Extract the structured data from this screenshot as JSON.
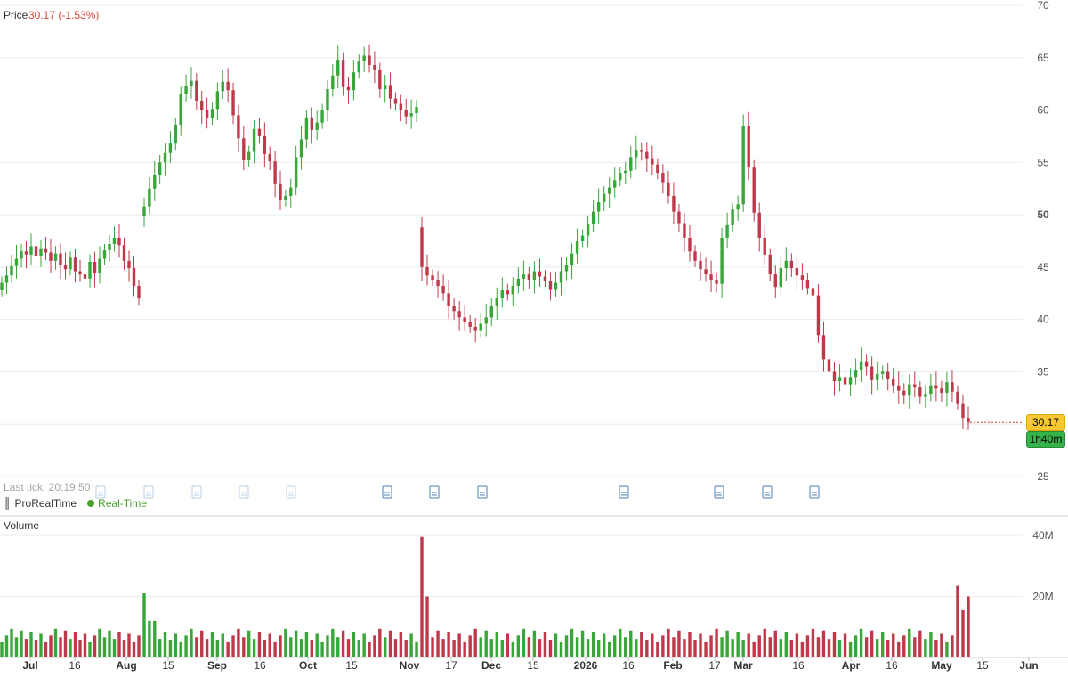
{
  "header": {
    "price_label": "Price",
    "price_change": "30.17 (-1.53%)"
  },
  "footer_info": {
    "last_tick": "Last tick: 20:19:50",
    "brand": "ProRealTime",
    "realtime": "Real-Time"
  },
  "volume_panel": {
    "title": "Volume"
  },
  "badges": {
    "last_price": "30.17",
    "countdown": "1h40m"
  },
  "colors": {
    "up": "#38a639",
    "down": "#c0394a",
    "current_price": "#f7c832",
    "timer": "#36b24a"
  },
  "icons": [
    "news-document-icon",
    "candlestick-logo-icon",
    "realtime-dot-icon"
  ],
  "chart_data": [
    {
      "type": "candlestick",
      "title": "Price",
      "price_axis": {
        "ticks": [
          25,
          30,
          35,
          40,
          45,
          50,
          55,
          60,
          65,
          70
        ],
        "labels": [
          "25",
          "35",
          "40",
          "45",
          "50",
          "55",
          "60",
          "65",
          "70"
        ],
        "range": [
          25,
          70
        ]
      },
      "time_axis": {
        "labels": [
          "Jul",
          "16",
          "Aug",
          "15",
          "Sep",
          "16",
          "Oct",
          "15",
          "Nov",
          "17",
          "Dec",
          "15",
          "2026",
          "16",
          "Feb",
          "17",
          "Mar",
          "16",
          "Apr",
          "16",
          "May",
          "15",
          "Jun"
        ]
      },
      "last_price": 30.17,
      "change_pct": -1.53,
      "grid": true,
      "closes": [
        43.5,
        44.2,
        45.1,
        45.8,
        46.5,
        46.2,
        47.0,
        46.1,
        46.8,
        46.4,
        45.6,
        46.3,
        45.2,
        44.8,
        45.9,
        44.6,
        44.3,
        43.9,
        45.5,
        44.4,
        45.8,
        46.6,
        47.2,
        47.8,
        47.1,
        45.6,
        44.9,
        43.2,
        42.0,
        50.8,
        52.5,
        53.8,
        55.0,
        55.9,
        56.8,
        58.6,
        61.5,
        62.3,
        62.8,
        60.9,
        60.0,
        59.2,
        60.1,
        61.8,
        62.7,
        61.9,
        59.5,
        57.3,
        55.2,
        56.0,
        58.2,
        57.5,
        55.8,
        55.1,
        53.0,
        51.4,
        51.8,
        52.6,
        55.5,
        57.2,
        59.3,
        58.1,
        58.8,
        60.0,
        62.0,
        63.3,
        64.8,
        62.2,
        61.9,
        63.6,
        64.7,
        65.2,
        64.3,
        63.8,
        62.0,
        62.4,
        61.1,
        60.6,
        60.0,
        59.4,
        59.7,
        60.3,
        45.0,
        44.2,
        43.8,
        43.2,
        42.5,
        41.3,
        40.8,
        40.2,
        39.8,
        39.3,
        38.9,
        39.6,
        40.2,
        41.3,
        42.1,
        42.8,
        42.4,
        43.2,
        43.9,
        44.3,
        43.8,
        44.6,
        44.1,
        43.7,
        42.9,
        43.5,
        44.6,
        45.2,
        46.3,
        47.5,
        48.0,
        49.1,
        50.3,
        51.2,
        52.0,
        52.6,
        53.3,
        54.0,
        54.2,
        55.5,
        56.2,
        56.0,
        55.4,
        54.8,
        54.0,
        53.1,
        51.8,
        50.3,
        49.2,
        47.8,
        46.5,
        45.6,
        44.8,
        44.3,
        43.8,
        43.4,
        47.8,
        49.0,
        50.5,
        51.0,
        58.5,
        54.5,
        50.2,
        47.8,
        46.2,
        44.3,
        43.1,
        44.9,
        45.6,
        44.9,
        44.2,
        43.8,
        43.0,
        42.3,
        38.5,
        36.2,
        35.0,
        34.1,
        34.5,
        33.8,
        34.5,
        35.2,
        36.0,
        35.5,
        34.2,
        34.8,
        35.0,
        34.3,
        33.7,
        33.2,
        32.8,
        33.8,
        33.5,
        32.6,
        32.9,
        33.7,
        33.4,
        33.0,
        34.0,
        33.1,
        32.0,
        30.6,
        30.17
      ],
      "volume_axis": {
        "ticks": [
          20,
          40
        ],
        "labels": [
          "20M",
          "40M"
        ],
        "unit": "M"
      },
      "volume_spike_max": 39.5
    }
  ]
}
